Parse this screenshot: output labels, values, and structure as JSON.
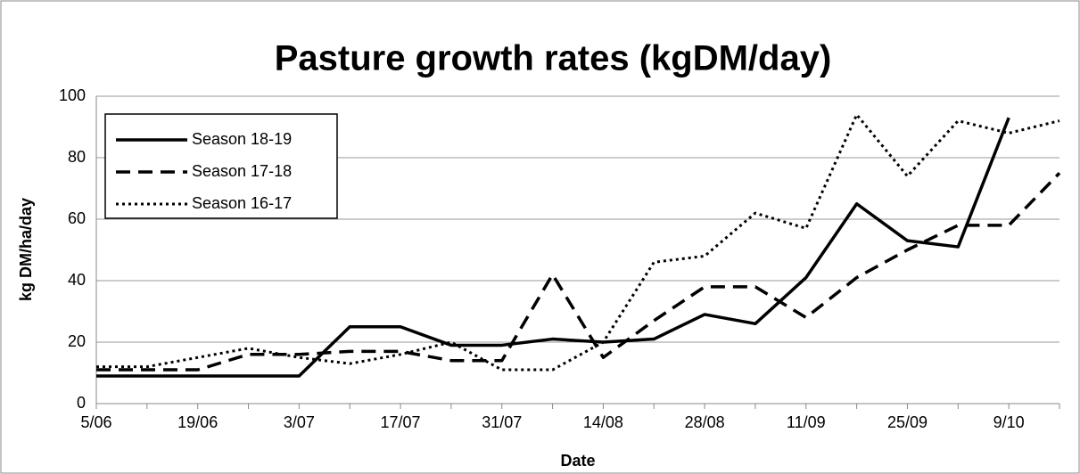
{
  "chart_data": {
    "type": "line",
    "title": "Pasture growth rates (kgDM/day)",
    "x_label": "Date",
    "y_label": "kg DM/ha/day",
    "categories": [
      "5/06",
      null,
      "19/06",
      null,
      "3/07",
      null,
      "17/07",
      null,
      "31/07",
      null,
      "14/08",
      null,
      "28/08",
      null,
      "11/09",
      null,
      "25/09",
      null,
      "9/10",
      null
    ],
    "series": [
      {
        "name": "Season 18-19",
        "color": "#000000",
        "dash": "solid",
        "values": [
          9,
          9,
          9,
          9,
          9,
          25,
          25,
          19,
          19,
          21,
          20,
          21,
          29,
          26,
          41,
          65,
          53,
          51,
          93,
          null
        ]
      },
      {
        "name": "Season 17-18",
        "color": "#000000",
        "dash": "dashed",
        "values": [
          11,
          11,
          11,
          16,
          16,
          17,
          17,
          14,
          14,
          42,
          15,
          27,
          38,
          38,
          28,
          41,
          50,
          58,
          58,
          75
        ]
      },
      {
        "name": "Season 16-17",
        "color": "#000000",
        "dash": "dotted",
        "values": [
          12,
          12,
          15,
          18,
          15,
          13,
          16,
          20,
          11,
          11,
          20,
          46,
          48,
          62,
          57,
          94,
          74,
          92,
          88,
          92
        ]
      }
    ],
    "ylim": [
      0,
      100
    ],
    "yticks": [
      0,
      20,
      40,
      60,
      80,
      100
    ],
    "grid": true,
    "legend": "upper left"
  }
}
